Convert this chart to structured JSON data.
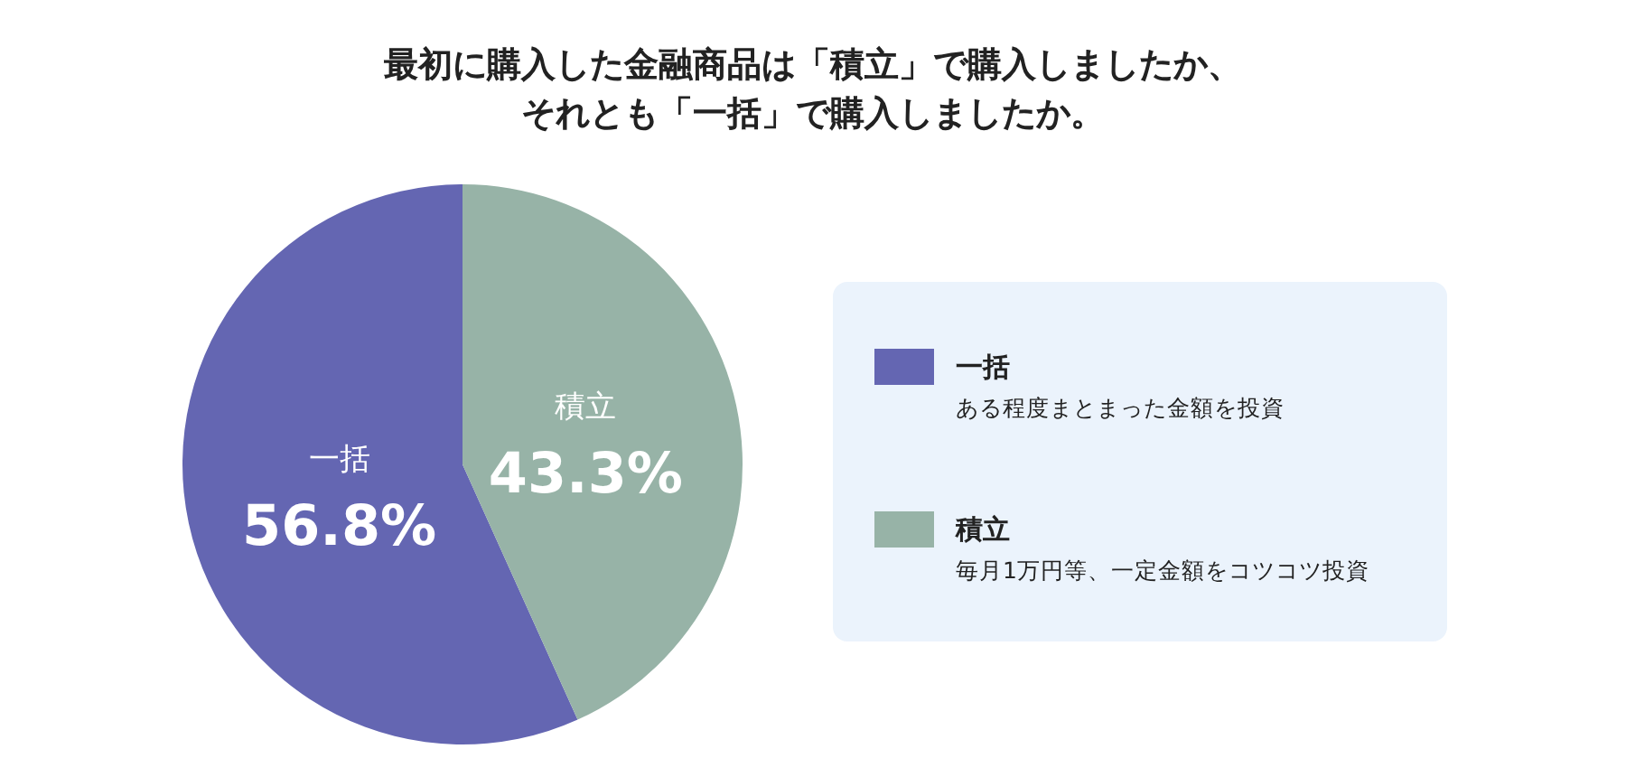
{
  "chart_data": {
    "type": "pie",
    "title": "最初に購入した金融商品は「積立」で購入しましたか、それとも「一括」で購入しましたか。",
    "categories": [
      "一括",
      "積立"
    ],
    "values": [
      56.8,
      43.3
    ],
    "value_labels": [
      "56.8%",
      "43.3%"
    ],
    "colors": [
      "#6466b2",
      "#97b3a7"
    ],
    "legend": "right",
    "annotations": [
      "ある程度まとまった金額を投資",
      "毎月1万円等、一定金額をコツコツ投資"
    ]
  }
}
